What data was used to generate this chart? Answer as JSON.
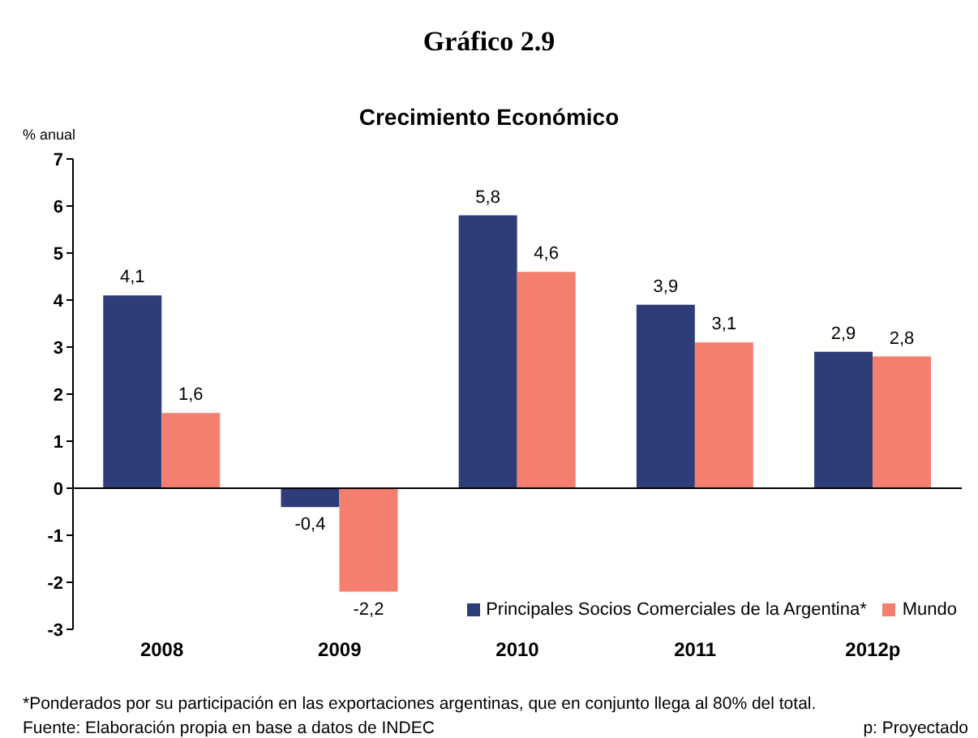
{
  "chart_data": {
    "type": "bar",
    "title": "Gráfico 2.9",
    "subtitle": "Crecimiento Económico",
    "ylabel": "% anual",
    "categories": [
      "2008",
      "2009",
      "2010",
      "2011",
      "2012p"
    ],
    "series": [
      {
        "name": "Principales Socios Comerciales de la Argentina*",
        "color": "#2e3d78",
        "values": [
          4.1,
          -0.4,
          5.8,
          3.9,
          2.9
        ],
        "value_labels": [
          "4,1",
          "-0,4",
          "5,8",
          "3,9",
          "2,9"
        ]
      },
      {
        "name": "Mundo",
        "color": "#f47f6e",
        "values": [
          1.6,
          -2.2,
          4.6,
          3.1,
          2.8
        ],
        "value_labels": [
          "1,6",
          "-2,2",
          "4,6",
          "3,1",
          "2,8"
        ]
      }
    ],
    "ylim": [
      -3,
      7
    ],
    "yticks": [
      -3,
      -2,
      -1,
      0,
      1,
      2,
      3,
      4,
      5,
      6,
      7
    ],
    "legend": "bottom right",
    "annotations": [
      "*Ponderados por su participación en las exportaciones argentinas, que en conjunto llega al 80% del total.",
      "Fuente: Elaboración propia en base a datos de INDEC",
      "p: Proyectado"
    ]
  }
}
